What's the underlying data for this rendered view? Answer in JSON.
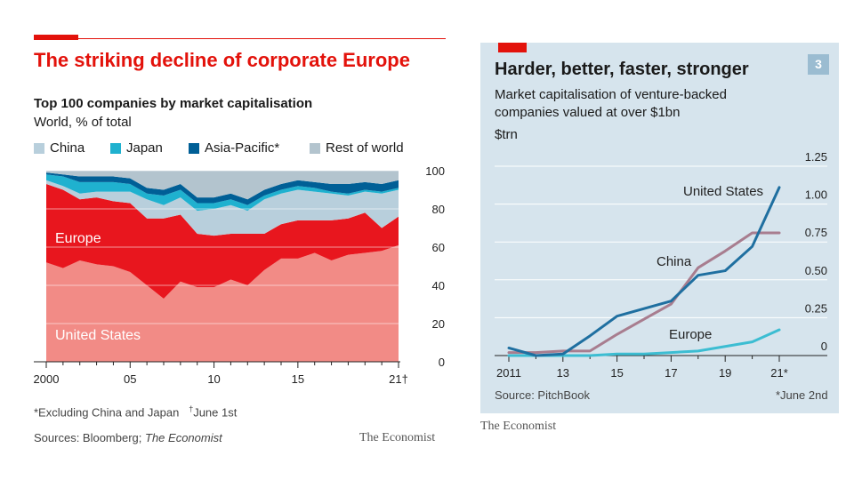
{
  "left": {
    "headline": "The striking decline of corporate Europe",
    "subtitle": "Top 100 companies by market capitalisation",
    "unit": "World, % of total",
    "legend": [
      {
        "label": "China",
        "color": "#b8cfdc"
      },
      {
        "label": "Japan",
        "color": "#1fb1cf"
      },
      {
        "label": "Asia-Pacific*",
        "color": "#005f96"
      },
      {
        "label": "Rest of world",
        "color": "#b3c4ce"
      }
    ],
    "footnote_a": "*Excluding China and Japan",
    "footnote_b_mark": "†",
    "footnote_b": "June 1st",
    "source_prefix": "Sources: Bloomberg; ",
    "source_italic": "The Economist",
    "brand": "The Economist"
  },
  "right": {
    "headline": "Harder, better, faster, stronger",
    "number": "3",
    "subtitle": "Market capitalisation of venture-backed companies valued at over $1bn",
    "unit": "$trn",
    "source": "Source: PitchBook",
    "footnote": "*June 2nd",
    "brand": "The Economist"
  },
  "chart_data": [
    {
      "type": "area",
      "stacked": true,
      "title": "Top 100 companies by market capitalisation",
      "ylabel": "World, % of total",
      "x": [
        2000,
        2001,
        2002,
        2003,
        2004,
        2005,
        2006,
        2007,
        2008,
        2009,
        2010,
        2011,
        2012,
        2013,
        2014,
        2015,
        2016,
        2017,
        2018,
        2019,
        2020,
        2021
      ],
      "x_tick_values": [
        2000,
        2005,
        2010,
        2015,
        2021
      ],
      "x_tick_labels": [
        "2000",
        "05",
        "10",
        "15",
        "21†"
      ],
      "ylim": [
        0,
        100
      ],
      "y_ticks": [
        0,
        20,
        40,
        60,
        80,
        100
      ],
      "grid": true,
      "series": [
        {
          "name": "United States",
          "color": "#f28b86",
          "values": [
            52,
            49,
            53,
            51,
            50,
            47,
            40,
            33,
            42,
            39,
            39,
            43,
            40,
            48,
            54,
            54,
            57,
            53,
            56,
            57,
            58,
            61
          ]
        },
        {
          "name": "Europe",
          "color": "#e8161e",
          "values": [
            41,
            41,
            32,
            35,
            34,
            36,
            35,
            42,
            35,
            28,
            27,
            24,
            27,
            19,
            18,
            20,
            17,
            21,
            19,
            21,
            12,
            15
          ]
        },
        {
          "name": "China",
          "color": "#b8cfdc",
          "values": [
            2,
            2,
            3,
            3,
            5,
            6,
            10,
            7,
            9,
            12,
            14,
            15,
            12,
            18,
            16,
            16,
            15,
            14,
            12,
            11,
            18,
            14
          ]
        },
        {
          "name": "Japan",
          "color": "#1fb1cf",
          "values": [
            3,
            5,
            6,
            5,
            5,
            4,
            3,
            5,
            4,
            4,
            3,
            3,
            3,
            2,
            2,
            2,
            2,
            1,
            1,
            1,
            1,
            1
          ]
        },
        {
          "name": "Asia-Pacific*",
          "color": "#005f96",
          "values": [
            1,
            1,
            3,
            3,
            3,
            3,
            3,
            3,
            3,
            3,
            3,
            3,
            3,
            3,
            3,
            3,
            3,
            4,
            5,
            4,
            4,
            4
          ]
        },
        {
          "name": "Rest of world",
          "color": "#b3c4ce",
          "values": [
            1,
            2,
            3,
            3,
            3,
            4,
            9,
            10,
            7,
            14,
            14,
            12,
            15,
            10,
            7,
            5,
            6,
            7,
            7,
            6,
            7,
            5
          ]
        }
      ],
      "annotations": [
        "Europe",
        "United States"
      ]
    },
    {
      "type": "line",
      "title": "Harder, better, faster, stronger",
      "ylabel": "$trn",
      "x": [
        2011,
        2012,
        2013,
        2014,
        2015,
        2016,
        2017,
        2018,
        2019,
        2020,
        2021
      ],
      "x_tick_values": [
        2011,
        2013,
        2015,
        2017,
        2019,
        2021
      ],
      "x_tick_labels": [
        "2011",
        "13",
        "15",
        "17",
        "19",
        "21*"
      ],
      "ylim": [
        0,
        1.25
      ],
      "y_ticks": [
        0,
        0.25,
        0.5,
        0.75,
        1.0,
        1.25
      ],
      "y_tick_labels": [
        "0",
        "0.25",
        "0.50",
        "0.75",
        "1.00",
        "1.25"
      ],
      "grid": true,
      "series": [
        {
          "name": "United States",
          "color": "#1f6fa0",
          "values": [
            0.05,
            0.0,
            0.01,
            0.13,
            0.26,
            0.31,
            0.36,
            0.53,
            0.56,
            0.72,
            1.11
          ]
        },
        {
          "name": "China",
          "color": "#a87d8f",
          "values": [
            0.02,
            0.02,
            0.03,
            0.03,
            0.14,
            0.24,
            0.34,
            0.58,
            0.69,
            0.81,
            0.81
          ]
        },
        {
          "name": "Europe",
          "color": "#3cbdd2",
          "values": [
            0.0,
            0.0,
            0.0,
            0.0,
            0.01,
            0.01,
            0.02,
            0.03,
            0.06,
            0.09,
            0.17
          ]
        }
      ]
    }
  ]
}
